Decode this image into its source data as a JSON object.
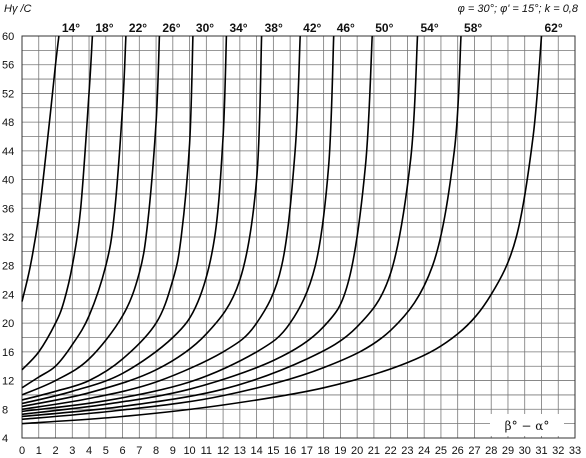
{
  "chart_data": {
    "type": "line",
    "title": "",
    "ylabel": "Hγ /C",
    "xlabel": "β° − α°",
    "parameters": "φ = 30°; φ' = 15°; k = 0,8",
    "xlim": [
      0,
      33
    ],
    "ylim": [
      4,
      60
    ],
    "x_ticks": [
      "0",
      "1",
      "2",
      "3",
      "4",
      "5",
      "6",
      "7",
      "8",
      "9",
      "10",
      "11",
      "12",
      "13",
      "14",
      "15",
      "16",
      "17",
      "18",
      "19",
      "20",
      "21",
      "22",
      "23",
      "24",
      "25",
      "26",
      "27",
      "28",
      "29",
      "30",
      "31",
      "32",
      "33"
    ],
    "y_ticks": [
      "4",
      "8",
      "12",
      "16",
      "20",
      "24",
      "28",
      "32",
      "36",
      "40",
      "44",
      "48",
      "52",
      "56",
      "60"
    ],
    "grid": true,
    "series": [
      {
        "name": "14°",
        "x": [
          0,
          0.5,
          1,
          1.5,
          2,
          2.2
        ],
        "y": [
          23,
          28,
          35,
          45,
          56,
          60
        ]
      },
      {
        "name": "18°",
        "x": [
          0,
          1,
          2,
          2.5,
          3,
          3.5,
          4,
          4.2
        ],
        "y": [
          13.5,
          16,
          20,
          23,
          28,
          36,
          52,
          60
        ]
      },
      {
        "name": "22°",
        "x": [
          0,
          1,
          2,
          3,
          4,
          5,
          5.5,
          6,
          6.2
        ],
        "y": [
          11,
          12.5,
          14,
          17,
          21,
          28,
          35,
          50,
          60
        ]
      },
      {
        "name": "26°",
        "x": [
          0,
          2,
          4,
          6,
          7,
          7.5,
          8,
          8.2
        ],
        "y": [
          10,
          12,
          15,
          21,
          27,
          34,
          48,
          60
        ]
      },
      {
        "name": "30°",
        "x": [
          0,
          2,
          4,
          6,
          8,
          9,
          9.5,
          10,
          10.2
        ],
        "y": [
          9.3,
          10.5,
          12,
          15,
          20,
          26,
          32,
          45,
          60
        ]
      },
      {
        "name": "34°",
        "x": [
          0,
          3,
          6,
          9,
          10.5,
          11.5,
          12,
          12.2
        ],
        "y": [
          8.8,
          10.5,
          13,
          18,
          23,
          32,
          46,
          60
        ]
      },
      {
        "name": "38°",
        "x": [
          0,
          4,
          8,
          11,
          13,
          14,
          14.3
        ],
        "y": [
          8.4,
          10.3,
          13.5,
          18.5,
          26,
          40,
          60
        ]
      },
      {
        "name": "42°",
        "x": [
          0,
          4,
          8,
          12,
          14,
          15.5,
          16.3,
          16.6
        ],
        "y": [
          8.0,
          9.5,
          11.8,
          16,
          20,
          28,
          44,
          60
        ]
      },
      {
        "name": "46°",
        "x": [
          0,
          5,
          10,
          14,
          16,
          17.5,
          18.3,
          18.6
        ],
        "y": [
          7.7,
          9.2,
          11.8,
          16,
          20,
          28,
          42,
          60
        ]
      },
      {
        "name": "50°",
        "x": [
          0,
          5,
          10,
          15,
          18,
          19.5,
          20.5,
          20.9
        ],
        "y": [
          7.3,
          8.7,
          10.8,
          14.8,
          19.5,
          26,
          42,
          60
        ]
      },
      {
        "name": "54°",
        "x": [
          0,
          6,
          12,
          17,
          20,
          22,
          23.2,
          23.6
        ],
        "y": [
          7.0,
          8.4,
          10.8,
          15,
          19.5,
          27,
          43,
          60
        ]
      },
      {
        "name": "58°",
        "x": [
          0,
          6,
          12,
          18,
          22,
          24.5,
          25.8,
          26.2
        ],
        "y": [
          6.6,
          7.9,
          9.9,
          13.8,
          19,
          28,
          44,
          60
        ]
      },
      {
        "name": "62°",
        "x": [
          0,
          6,
          12,
          18,
          23,
          26,
          28,
          29.5,
          30.5,
          31
        ],
        "y": [
          6.0,
          7.0,
          8.6,
          11,
          14.5,
          18.5,
          24,
          32,
          46,
          60
        ]
      }
    ]
  }
}
